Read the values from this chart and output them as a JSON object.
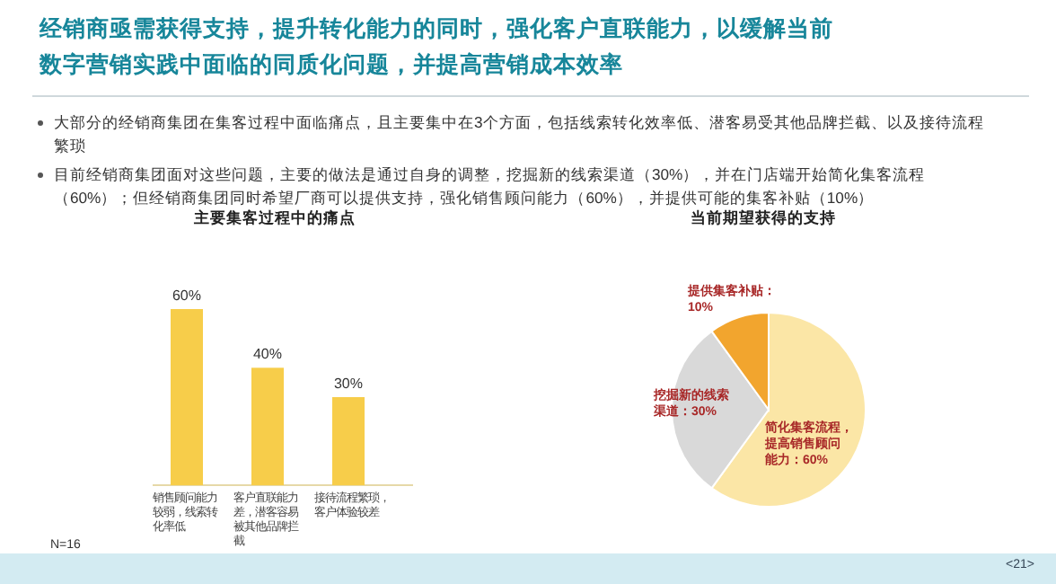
{
  "chart_data": [
    {
      "type": "other",
      "title": "经销商亟需获得支持，提升转化能力的同时，强化客户直联能力，以缓解当前数字营销实践中面临的同质化问题，并提高营销成本效率",
      "annotations": [
        "大部分的经销商集团在集客过程中面临痛点，且主要集中在3个方面，包括线索转化效率低、潜客易受其他品牌拦截、以及接待流程繁琐",
        "目前经销商集团面对这些问题，主要的做法是通过自身的调整，挖掘新的线索渠道（30%），并在门店端开始简化集客流程（60%）；但经销商集团同时希望厂商可以提供支持，强化销售顾问能力（60%），并提供可能的集客补贴（10%）",
        "<21>"
      ]
    },
    {
      "type": "bar",
      "title": "主要集客过程中的痛点",
      "categories": [
        "销售顾问能力较弱，线索转化率低",
        "客户直联能力差，潜客容易被其他品牌拦截",
        "接待流程繁琐，客户体验较差"
      ],
      "values": [
        60,
        40,
        30
      ],
      "value_labels": [
        "60%",
        "40%",
        "30%"
      ],
      "color": "#f7cd4a",
      "annotations": [
        "N=16"
      ]
    },
    {
      "type": "pie",
      "title": "当前期望获得的支持",
      "categories": [
        "简化集客流程，提高销售顾问能力：60%",
        "挖掘新的线索渠道：30%",
        "提供集客补贴：10%"
      ],
      "values": [
        60,
        30,
        10
      ],
      "colors": [
        "#fbe6a6",
        "#d9d9d9",
        "#f2a52e"
      ]
    }
  ]
}
